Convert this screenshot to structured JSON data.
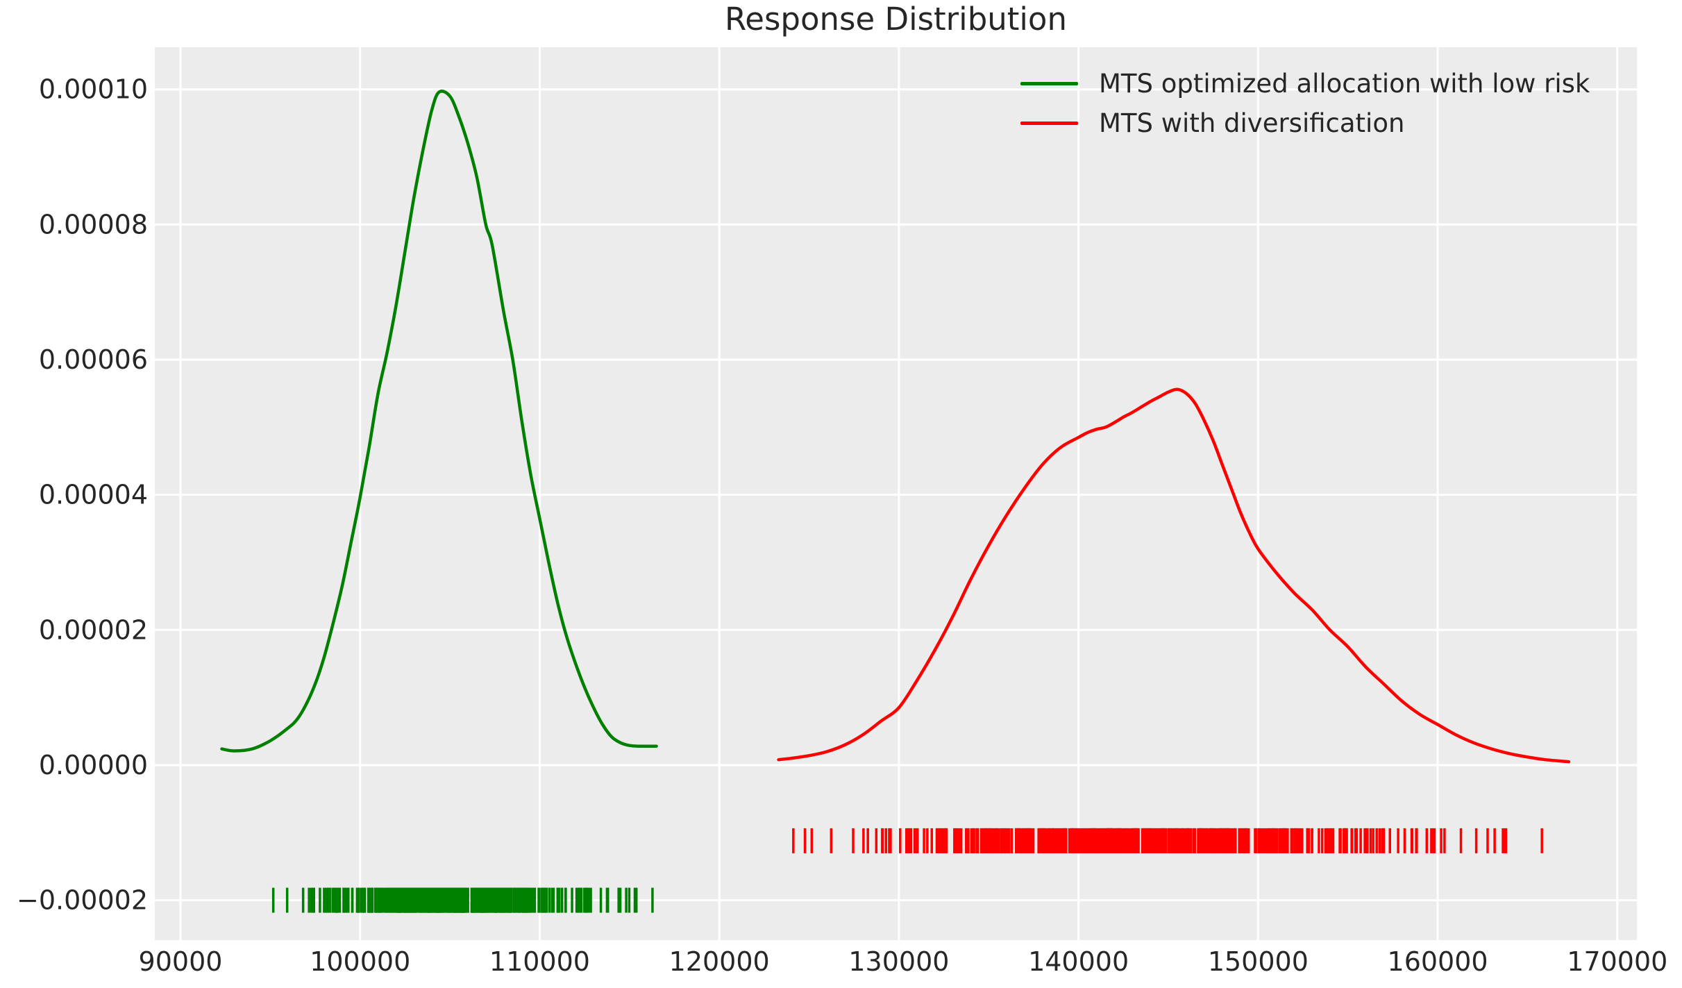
{
  "title": "Response Distribution",
  "legend": {
    "items": [
      {
        "label": "MTS optimized allocation with low risk",
        "color": "#008000"
      },
      {
        "label": "MTS with diversification",
        "color": "#ff0000"
      }
    ]
  },
  "axes": {
    "xticks": [
      90000,
      100000,
      110000,
      120000,
      130000,
      140000,
      150000,
      160000,
      170000
    ],
    "xtick_labels": [
      "90000",
      "100000",
      "110000",
      "120000",
      "130000",
      "140000",
      "150000",
      "160000",
      "170000"
    ],
    "yticks": [
      0.0001,
      8e-05,
      6e-05,
      4e-05,
      2e-05,
      0.0,
      -2e-05
    ],
    "ytick_labels": [
      "0.00010",
      "0.00008",
      "0.00006",
      "0.00004",
      "0.00002",
      "0.00000",
      "−0.00002"
    ]
  },
  "colors": {
    "plot_background": "#ececec",
    "gridline": "#ffffff",
    "text": "#262626",
    "green_series": "#008000",
    "red_series": "#ff0000"
  },
  "chart_data": {
    "type": "line",
    "title": "Response Distribution",
    "xlabel": "",
    "ylabel": "",
    "xlim": [
      88570,
      171090
    ],
    "ylim": [
      -2.59e-05,
      0.00010624
    ],
    "grid": true,
    "legend_position": "upper right",
    "series": [
      {
        "name": "MTS optimized allocation with low risk",
        "color": "#008000",
        "x": [
          92300,
          93000,
          94000,
          95000,
          96000,
          96500,
          97000,
          97500,
          98000,
          98500,
          99000,
          99500,
          100000,
          100500,
          101000,
          101500,
          102000,
          102500,
          103000,
          103500,
          104000,
          104400,
          105000,
          105500,
          106000,
          106500,
          107000,
          107350,
          108000,
          108500,
          109000,
          109500,
          110000,
          110500,
          111000,
          111500,
          112000,
          112500,
          113000,
          113500,
          114000,
          114500,
          115000,
          115500,
          116000,
          116500
        ],
        "y": [
          2.4e-06,
          2.1e-06,
          2.4e-06,
          3.6e-06,
          5.5e-06,
          6.8e-06,
          9e-06,
          1.2e-05,
          1.6e-05,
          2.1e-05,
          2.65e-05,
          3.3e-05,
          3.96e-05,
          4.7e-05,
          5.5e-05,
          6.1e-05,
          6.8e-05,
          7.6e-05,
          8.4e-05,
          9.1e-05,
          9.7e-05,
          9.96e-05,
          9.9e-05,
          9.6e-05,
          9.2e-05,
          8.7e-05,
          8e-05,
          7.7e-05,
          6.7e-05,
          6e-05,
          5.1e-05,
          4.3e-05,
          3.65e-05,
          3e-05,
          2.4e-05,
          1.9e-05,
          1.5e-05,
          1.15e-05,
          8.5e-06,
          6e-06,
          4.2e-06,
          3.3e-06,
          2.9e-06,
          2.8e-06,
          2.8e-06,
          2.8e-06
        ],
        "peak": {
          "x": 104400,
          "y": 9.96e-05
        },
        "rug": {
          "count": 450,
          "x_min": 92300,
          "x_max": 116500,
          "y_center": -2e-05,
          "seed": 42
        }
      },
      {
        "name": "MTS with diversification",
        "color": "#ff0000",
        "x": [
          123300,
          124000,
          125000,
          126000,
          127000,
          128000,
          129000,
          130000,
          131000,
          132000,
          133000,
          134000,
          135000,
          136000,
          137000,
          138000,
          139000,
          140000,
          140500,
          141000,
          141500,
          142000,
          142500,
          143000,
          143500,
          144000,
          144500,
          145000,
          145500,
          146000,
          146500,
          147000,
          147500,
          148000,
          148500,
          149000,
          149500,
          150000,
          151000,
          152000,
          153000,
          154000,
          155000,
          156000,
          157000,
          158000,
          159000,
          160000,
          161000,
          162000,
          163000,
          164000,
          165000,
          166000,
          167300
        ],
        "y": [
          8e-07,
          1e-06,
          1.4e-06,
          2e-06,
          3e-06,
          4.5e-06,
          6.5e-06,
          8.5e-06,
          1.25e-05,
          1.7e-05,
          2.2e-05,
          2.75e-05,
          3.25e-05,
          3.7e-05,
          4.1e-05,
          4.45e-05,
          4.7e-05,
          4.85e-05,
          4.92e-05,
          4.97e-05,
          5e-05,
          5.07e-05,
          5.15e-05,
          5.22e-05,
          5.3e-05,
          5.38e-05,
          5.45e-05,
          5.52e-05,
          5.56e-05,
          5.5e-05,
          5.35e-05,
          5.1e-05,
          4.8e-05,
          4.45e-05,
          4.1e-05,
          3.75e-05,
          3.45e-05,
          3.2e-05,
          2.85e-05,
          2.55e-05,
          2.3e-05,
          2e-05,
          1.75e-05,
          1.45e-05,
          1.2e-05,
          9.5e-06,
          7.5e-06,
          6e-06,
          4.5e-06,
          3.3e-06,
          2.4e-06,
          1.7e-06,
          1.2e-06,
          8e-07,
          5e-07
        ],
        "peak": {
          "x": 145500,
          "y": 5.56e-05
        },
        "rug": {
          "count": 550,
          "x_min": 123300,
          "x_max": 167400,
          "y_center": -1.12e-05,
          "seed": 7
        }
      }
    ]
  }
}
